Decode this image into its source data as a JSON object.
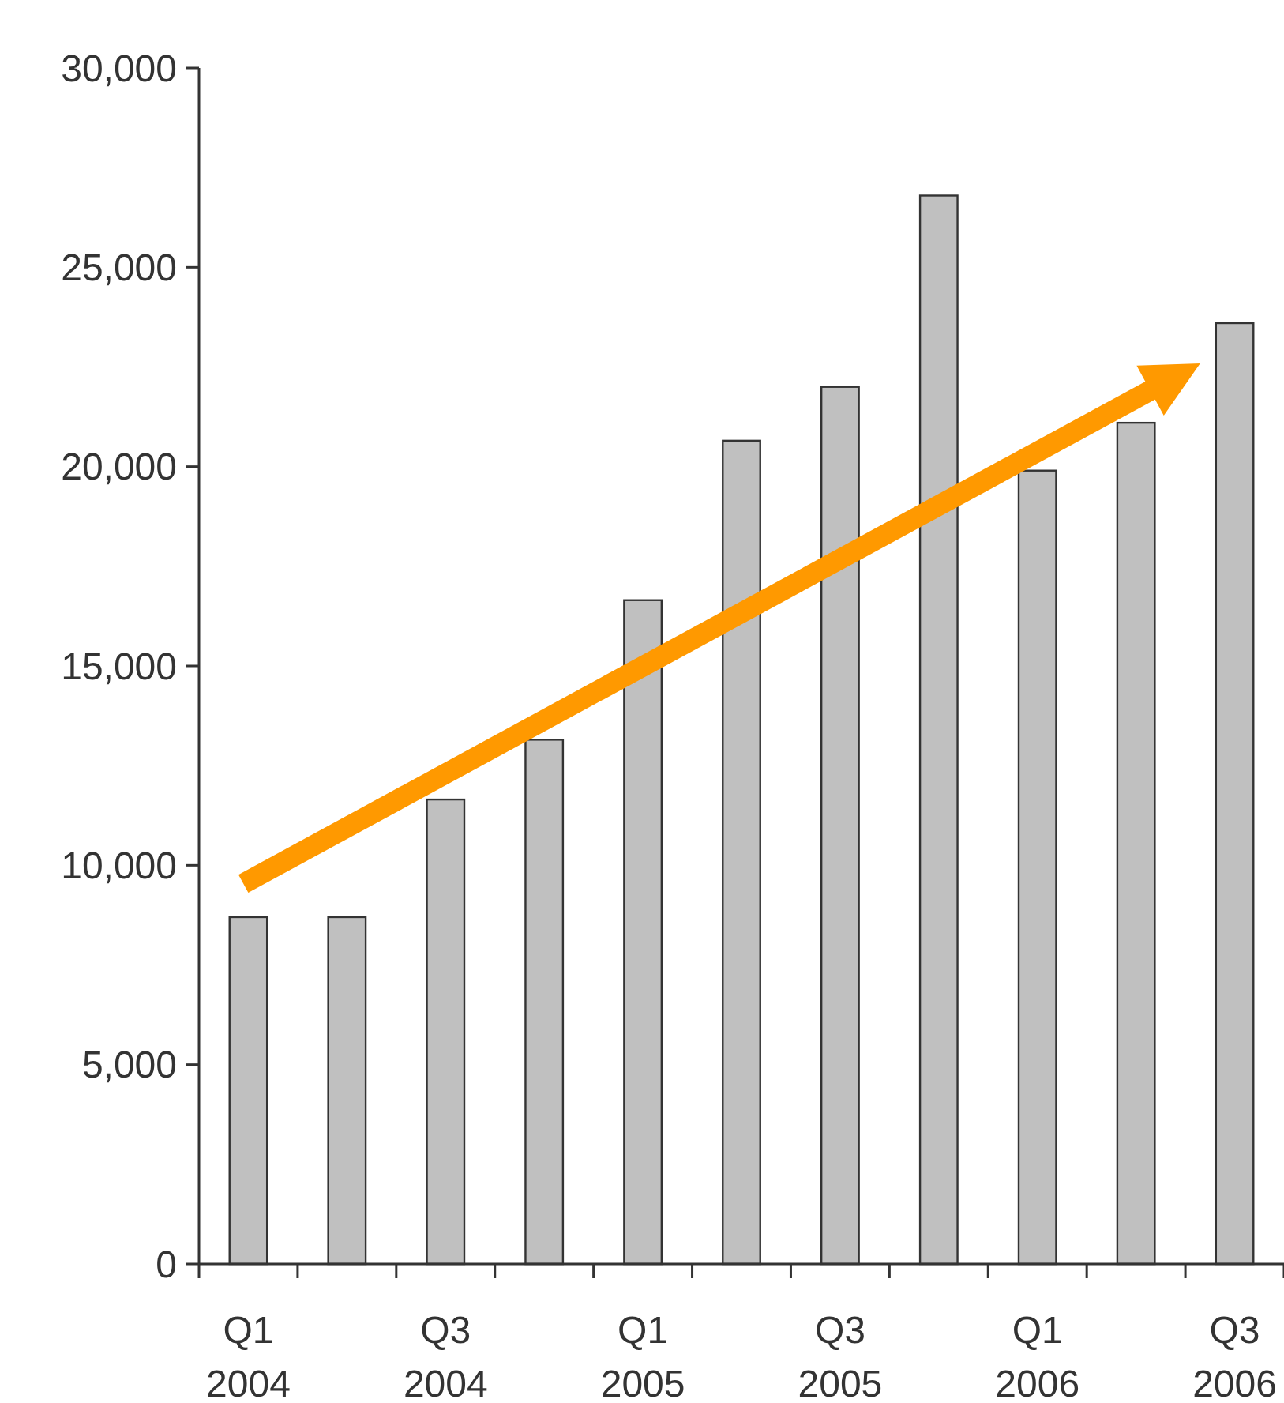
{
  "chart_data": {
    "type": "bar",
    "categories": [
      "Q1\n2004",
      null,
      "Q3\n2004",
      null,
      "Q1\n2005",
      null,
      "Q3\n2005",
      null,
      "Q1\n2006",
      null,
      "Q3\n2006"
    ],
    "values": [
      8700,
      8700,
      11650,
      13150,
      16650,
      20650,
      22000,
      26800,
      19900,
      21100,
      23600
    ],
    "color": "#c0c0c0",
    "ylim": [
      0,
      30000
    ],
    "yticks": [
      {
        "value": 0,
        "label": "0"
      },
      {
        "value": 5000,
        "label": "5,000"
      },
      {
        "value": 10000,
        "label": "10,000"
      },
      {
        "value": 15000,
        "label": "15,000"
      },
      {
        "value": 20000,
        "label": "20,000"
      },
      {
        "value": 25000,
        "label": "25,000"
      },
      {
        "value": 30000,
        "label": "30,000"
      }
    ],
    "grid": false
  }
}
